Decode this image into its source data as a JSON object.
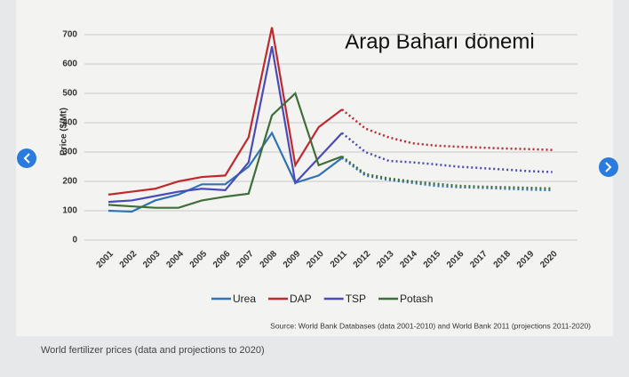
{
  "chart_data": {
    "type": "line",
    "annotation": "Arap Baharı dönemi",
    "y_label": "Price ($/Mt)",
    "source": "Source: World Bank Databases (data 2001-2010) and World Bank 2011 (projections 2011-2020)",
    "caption": "World fertilizer prices (data and projections to 2020)",
    "categories": [
      "2001",
      "2002",
      "2003",
      "2004",
      "2005",
      "2006",
      "2007",
      "2008",
      "2009",
      "2010",
      "2011",
      "2012",
      "2013",
      "2014",
      "2015",
      "2016",
      "2017",
      "2018",
      "2019",
      "2020"
    ],
    "ylim": [
      0,
      800
    ],
    "yticks": [
      0,
      100,
      200,
      300,
      400,
      500,
      600,
      700
    ],
    "grid": true,
    "series": [
      {
        "name": "Urea",
        "color": "#2f72b8",
        "values": [
          100,
          97,
          135,
          155,
          190,
          190,
          250,
          365,
          195,
          220,
          280,
          null,
          null,
          null,
          null,
          null,
          null,
          null,
          null,
          null
        ],
        "projections": [
          null,
          null,
          null,
          null,
          null,
          null,
          null,
          null,
          null,
          null,
          280,
          220,
          205,
          195,
          185,
          180,
          178,
          175,
          172,
          170
        ]
      },
      {
        "name": "DAP",
        "color": "#c0282e",
        "values": [
          155,
          165,
          175,
          200,
          215,
          220,
          350,
          725,
          255,
          385,
          445,
          null,
          null,
          null,
          null,
          null,
          null,
          null,
          null,
          null
        ],
        "projections": [
          null,
          null,
          null,
          null,
          null,
          null,
          null,
          null,
          null,
          null,
          445,
          380,
          350,
          330,
          322,
          318,
          315,
          312,
          310,
          307
        ]
      },
      {
        "name": "TSP",
        "color": "#4a4bb8",
        "values": [
          130,
          135,
          150,
          165,
          175,
          170,
          265,
          660,
          195,
          280,
          365,
          null,
          null,
          null,
          null,
          null,
          null,
          null,
          null,
          null
        ],
        "projections": [
          null,
          null,
          null,
          null,
          null,
          null,
          null,
          null,
          null,
          null,
          365,
          300,
          270,
          265,
          258,
          250,
          245,
          240,
          235,
          232
        ]
      },
      {
        "name": "Potash",
        "color": "#3f6e3a",
        "values": [
          120,
          115,
          110,
          110,
          135,
          148,
          158,
          425,
          500,
          255,
          285,
          null,
          null,
          null,
          null,
          null,
          null,
          null,
          null,
          null
        ],
        "projections": [
          null,
          null,
          null,
          null,
          null,
          null,
          null,
          null,
          null,
          null,
          285,
          225,
          210,
          200,
          192,
          185,
          182,
          180,
          178,
          176
        ]
      }
    ]
  }
}
